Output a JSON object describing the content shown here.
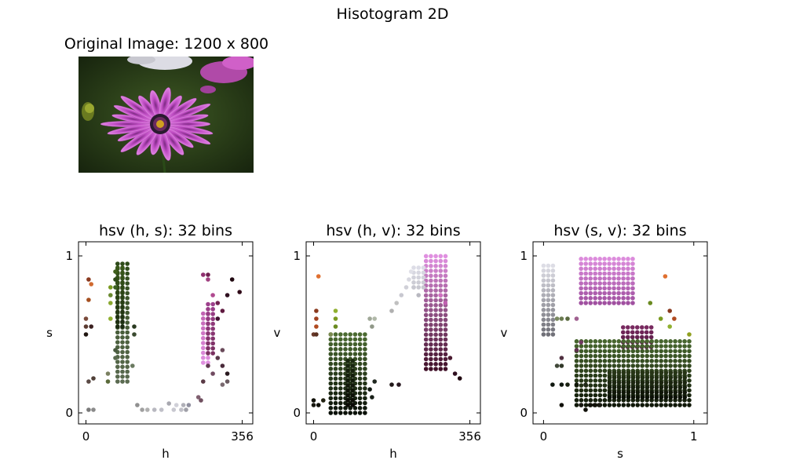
{
  "figure": {
    "title": "Hisotogram 2D",
    "image_title": "Original Image: 1200 x 800"
  },
  "chart_data": [
    {
      "type": "scatter",
      "title": "hsv (h, s): 32 bins",
      "xlabel": "h",
      "ylabel": "s",
      "xlim": [
        -17,
        380
      ],
      "ylim": [
        -0.07,
        1.09
      ],
      "xticks": [
        0,
        356
      ],
      "yticks": [
        0,
        1
      ],
      "grid": false,
      "points": [
        {
          "x": 6,
          "y": 0.85,
          "c": "#8a3a1f"
        },
        {
          "x": 12,
          "y": 0.82,
          "c": "#d06a30"
        },
        {
          "x": 6,
          "y": 0.72,
          "c": "#a55020"
        },
        {
          "x": 0,
          "y": 0.6,
          "c": "#7a4a3a"
        },
        {
          "x": 0,
          "y": 0.55,
          "c": "#5a3a30"
        },
        {
          "x": 0,
          "y": 0.5,
          "c": "#201510"
        },
        {
          "x": 12,
          "y": 0.55,
          "c": "#3a2020"
        },
        {
          "x": 6,
          "y": 0.2,
          "c": "#5a4a45"
        },
        {
          "x": 17,
          "y": 0.22,
          "c": "#504038"
        },
        {
          "x": 6,
          "y": 0.02,
          "c": "#7a7a7a"
        },
        {
          "x": 17,
          "y": 0.02,
          "c": "#8a8a8a"
        },
        {
          "x": 56,
          "y": 0.8,
          "c": "#7a9a20"
        },
        {
          "x": 56,
          "y": 0.75,
          "c": "#6a8a30"
        },
        {
          "x": 56,
          "y": 0.7,
          "c": "#8aa830"
        },
        {
          "x": 56,
          "y": 0.6,
          "c": "#90b030"
        },
        {
          "x": 50,
          "y": 0.2,
          "c": "#5a6a3a"
        },
        {
          "x": 50,
          "y": 0.25,
          "c": "#7a8060"
        },
        {
          "x": 67,
          "y": 0.8,
          "c": "#3a6020"
        },
        {
          "x": 67,
          "y": 0.85,
          "c": "#2d4a18"
        },
        {
          "x": 67,
          "y": 0.9,
          "c": "#40601c"
        },
        {
          "x": 67,
          "y": 0.4,
          "c": "#4a5a40"
        },
        {
          "x": 67,
          "y": 0.35,
          "c": "#5a6a50"
        },
        {
          "x": 110,
          "y": 0.55,
          "c": "#2a3a20"
        },
        {
          "x": 110,
          "y": 0.5,
          "c": "#3a4a30"
        },
        {
          "x": 106,
          "y": 0.3,
          "c": "#6a7a60"
        },
        {
          "x": 117,
          "y": 0.05,
          "c": "#909090"
        },
        {
          "x": 128,
          "y": 0.02,
          "c": "#a0a0a0"
        },
        {
          "x": 140,
          "y": 0.02,
          "c": "#b0b0b0"
        },
        {
          "x": 156,
          "y": 0.02,
          "c": "#b8b8c0"
        },
        {
          "x": 172,
          "y": 0.02,
          "c": "#c0c0c8"
        },
        {
          "x": 189,
          "y": 0.06,
          "c": "#a8a8b0"
        },
        {
          "x": 200,
          "y": 0.02,
          "c": "#c8c8d0"
        },
        {
          "x": 206,
          "y": 0.05,
          "c": "#d0d0d8"
        },
        {
          "x": 217,
          "y": 0.02,
          "c": "#c0c0c8"
        },
        {
          "x": 222,
          "y": 0.05,
          "c": "#b0b0b8"
        },
        {
          "x": 228,
          "y": 0.02,
          "c": "#a0a0a8"
        },
        {
          "x": 234,
          "y": 0.05,
          "c": "#9090a0"
        },
        {
          "x": 267,
          "y": 0.88,
          "c": "#903070"
        },
        {
          "x": 278,
          "y": 0.88,
          "c": "#702050"
        },
        {
          "x": 278,
          "y": 0.85,
          "c": "#a04080"
        },
        {
          "x": 289,
          "y": 0.75,
          "c": "#b04a90"
        },
        {
          "x": 300,
          "y": 0.7,
          "c": "#702050"
        },
        {
          "x": 311,
          "y": 0.65,
          "c": "#601a40"
        },
        {
          "x": 300,
          "y": 0.6,
          "c": "#401030"
        },
        {
          "x": 322,
          "y": 0.75,
          "c": "#301020"
        },
        {
          "x": 333,
          "y": 0.85,
          "c": "#200810"
        },
        {
          "x": 350,
          "y": 0.77,
          "c": "#300a18"
        },
        {
          "x": 278,
          "y": 0.3,
          "c": "#603a50"
        },
        {
          "x": 289,
          "y": 0.25,
          "c": "#704a60"
        },
        {
          "x": 300,
          "y": 0.35,
          "c": "#5a3a4a"
        },
        {
          "x": 311,
          "y": 0.4,
          "c": "#6a4a5a"
        },
        {
          "x": 311,
          "y": 0.3,
          "c": "#4a2a3a"
        },
        {
          "x": 322,
          "y": 0.25,
          "c": "#2a1a20"
        },
        {
          "x": 322,
          "y": 0.2,
          "c": "#6a5a60"
        },
        {
          "x": 311,
          "y": 0.18,
          "c": "#7a6a70"
        },
        {
          "x": 267,
          "y": 0.2,
          "c": "#5a3a45"
        },
        {
          "x": 256,
          "y": 0.1,
          "c": "#806070"
        },
        {
          "x": 262,
          "y": 0.08,
          "c": "#705060"
        }
      ],
      "clusters": [
        {
          "x_from": 72,
          "x_to": 100,
          "y_from": 0.2,
          "y_to": 0.98,
          "color_top": "#2d4a18",
          "color_bottom": "#5a6a50",
          "note": "green"
        },
        {
          "x_from": 72,
          "x_to": 89,
          "y_from": 0.55,
          "y_to": 0.95,
          "color_top": "#3a5a1a",
          "color_bottom": "#1a2a10",
          "note": "green-dark"
        },
        {
          "x_from": 267,
          "x_to": 289,
          "y_from": 0.32,
          "y_to": 0.65,
          "color_top": "#c060b0",
          "color_bottom": "#e090e0",
          "note": "pink"
        },
        {
          "x_from": 278,
          "x_to": 300,
          "y_from": 0.38,
          "y_to": 0.72,
          "color_top": "#a04090",
          "color_bottom": "#7a3060",
          "note": "pink-dark"
        }
      ]
    },
    {
      "type": "scatter",
      "title": "hsv (h, v): 32 bins",
      "xlabel": "h",
      "ylabel": "v",
      "xlim": [
        -17,
        380
      ],
      "ylim": [
        -0.07,
        1.09
      ],
      "xticks": [
        0,
        356
      ],
      "yticks": [
        0,
        1
      ],
      "grid": false,
      "points": [
        {
          "x": 11,
          "y": 0.87,
          "c": "#e07030"
        },
        {
          "x": 6,
          "y": 0.65,
          "c": "#8a3a1f"
        },
        {
          "x": 6,
          "y": 0.6,
          "c": "#a04020"
        },
        {
          "x": 6,
          "y": 0.55,
          "c": "#b04a20"
        },
        {
          "x": 0,
          "y": 0.5,
          "c": "#6a3a2a"
        },
        {
          "x": 6,
          "y": 0.5,
          "c": "#5a3020"
        },
        {
          "x": 0,
          "y": 0.08,
          "c": "#101008"
        },
        {
          "x": 0,
          "y": 0.05,
          "c": "#181810"
        },
        {
          "x": 11,
          "y": 0.05,
          "c": "#101008"
        },
        {
          "x": 22,
          "y": 0.08,
          "c": "#202010"
        },
        {
          "x": 50,
          "y": 0.65,
          "c": "#90b030"
        },
        {
          "x": 50,
          "y": 0.6,
          "c": "#7a9a20"
        },
        {
          "x": 50,
          "y": 0.55,
          "c": "#6a8a20"
        },
        {
          "x": 39,
          "y": 0.5,
          "c": "#7a8a50"
        },
        {
          "x": 128,
          "y": 0.6,
          "c": "#a0a898"
        },
        {
          "x": 139,
          "y": 0.6,
          "c": "#b0b8a8"
        },
        {
          "x": 133,
          "y": 0.55,
          "c": "#909888"
        },
        {
          "x": 178,
          "y": 0.65,
          "c": "#b0b0b0"
        },
        {
          "x": 189,
          "y": 0.7,
          "c": "#c0c0c0"
        },
        {
          "x": 200,
          "y": 0.75,
          "c": "#c8c8d0"
        },
        {
          "x": 211,
          "y": 0.8,
          "c": "#d0d0d8"
        },
        {
          "x": 217,
          "y": 0.85,
          "c": "#d8d8e0"
        },
        {
          "x": 222,
          "y": 0.9,
          "c": "#e0e0e8"
        },
        {
          "x": 228,
          "y": 0.8,
          "c": "#c8c8d0"
        },
        {
          "x": 239,
          "y": 0.75,
          "c": "#b8b8c0"
        },
        {
          "x": 128,
          "y": 0.15,
          "c": "#101810"
        },
        {
          "x": 133,
          "y": 0.1,
          "c": "#182018"
        },
        {
          "x": 139,
          "y": 0.2,
          "c": "#202820"
        },
        {
          "x": 178,
          "y": 0.18,
          "c": "#201818"
        },
        {
          "x": 194,
          "y": 0.18,
          "c": "#281820"
        },
        {
          "x": 322,
          "y": 0.25,
          "c": "#301020"
        },
        {
          "x": 333,
          "y": 0.22,
          "c": "#200810"
        },
        {
          "x": 311,
          "y": 0.35,
          "c": "#4a1a30"
        },
        {
          "x": 300,
          "y": 0.7,
          "c": "#c060b0"
        },
        {
          "x": 289,
          "y": 0.75,
          "c": "#d070c0"
        }
      ],
      "clusters": [
        {
          "x_from": 39,
          "x_to": 117,
          "y_from": 0.0,
          "y_to": 0.5,
          "color_top": "#4a6a30",
          "color_bottom": "#0a1008",
          "note": "green"
        },
        {
          "x_from": 78,
          "x_to": 100,
          "y_from": 0.05,
          "y_to": 0.35,
          "color_top": "#1a2a10",
          "color_bottom": "#0a0a05",
          "note": "green-dark"
        },
        {
          "x_from": 256,
          "x_to": 311,
          "y_from": 0.28,
          "y_to": 1.0,
          "color_top": "#e090e0",
          "color_bottom": "#401028",
          "note": "pink"
        },
        {
          "x_from": 228,
          "x_to": 256,
          "y_from": 0.8,
          "y_to": 0.95,
          "color_top": "#e0e0ea",
          "color_bottom": "#c8c8d0",
          "note": "white"
        }
      ]
    },
    {
      "type": "scatter",
      "title": "hsv (s, v): 32 bins",
      "xlabel": "s",
      "ylabel": "v",
      "xlim": [
        -0.07,
        1.09
      ],
      "ylim": [
        -0.07,
        1.09
      ],
      "xticks": [
        0,
        1
      ],
      "yticks": [
        0,
        1
      ],
      "grid": false,
      "points": [
        {
          "x": 0.81,
          "y": 0.87,
          "c": "#e07030"
        },
        {
          "x": 0.84,
          "y": 0.65,
          "c": "#8a3a1f"
        },
        {
          "x": 0.87,
          "y": 0.6,
          "c": "#b04a20"
        },
        {
          "x": 0.84,
          "y": 0.55,
          "c": "#90b030"
        },
        {
          "x": 0.78,
          "y": 0.6,
          "c": "#7a9a20"
        },
        {
          "x": 0.71,
          "y": 0.7,
          "c": "#6a8a20"
        },
        {
          "x": 0.97,
          "y": 0.5,
          "c": "#90a020"
        },
        {
          "x": 0.09,
          "y": 0.6,
          "c": "#7a8a60"
        },
        {
          "x": 0.12,
          "y": 0.6,
          "c": "#6a7a50"
        },
        {
          "x": 0.16,
          "y": 0.6,
          "c": "#5a6a40"
        },
        {
          "x": 0.22,
          "y": 0.6,
          "c": "#a06090"
        },
        {
          "x": 0.09,
          "y": 0.3,
          "c": "#404838"
        },
        {
          "x": 0.12,
          "y": 0.3,
          "c": "#303828"
        },
        {
          "x": 0.06,
          "y": 0.18,
          "c": "#101810"
        },
        {
          "x": 0.12,
          "y": 0.18,
          "c": "#101810"
        },
        {
          "x": 0.16,
          "y": 0.18,
          "c": "#182010"
        },
        {
          "x": 0.22,
          "y": 0.18,
          "c": "#101808"
        },
        {
          "x": 0.28,
          "y": 0.18,
          "c": "#202818"
        },
        {
          "x": 0.12,
          "y": 0.05,
          "c": "#101008"
        },
        {
          "x": 0.25,
          "y": 0.05,
          "c": "#181810"
        },
        {
          "x": 0.28,
          "y": 0.02,
          "c": "#101008"
        },
        {
          "x": 0.31,
          "y": 0.05,
          "c": "#101008"
        },
        {
          "x": 0.34,
          "y": 0.05,
          "c": "#101008"
        },
        {
          "x": 0.37,
          "y": 0.05,
          "c": "#181810"
        },
        {
          "x": 0.12,
          "y": 0.35,
          "c": "#503040"
        },
        {
          "x": 0.22,
          "y": 0.4,
          "c": "#603050"
        },
        {
          "x": 0.25,
          "y": 0.45,
          "c": "#703a60"
        }
      ],
      "clusters": [
        {
          "x_from": 0.0,
          "x_to": 0.09,
          "y_from": 0.5,
          "y_to": 0.95,
          "color_top": "#e0e0e8",
          "color_bottom": "#707078",
          "note": "white"
        },
        {
          "x_from": 0.25,
          "x_to": 0.62,
          "y_from": 0.7,
          "y_to": 1.0,
          "color_top": "#e090e0",
          "color_bottom": "#a050a0",
          "note": "pink"
        },
        {
          "x_from": 0.53,
          "x_to": 0.72,
          "y_from": 0.42,
          "y_to": 0.55,
          "color_top": "#7a2a60",
          "color_bottom": "#501840",
          "note": "pink-dark"
        },
        {
          "x_from": 0.22,
          "x_to": 0.97,
          "y_from": 0.05,
          "y_to": 0.48,
          "color_top": "#4a6a30",
          "color_bottom": "#101808",
          "note": "green"
        },
        {
          "x_from": 0.44,
          "x_to": 0.97,
          "y_from": 0.1,
          "y_to": 0.28,
          "color_top": "#2a3a18",
          "color_bottom": "#0a0f05",
          "note": "green-dark"
        }
      ]
    }
  ]
}
